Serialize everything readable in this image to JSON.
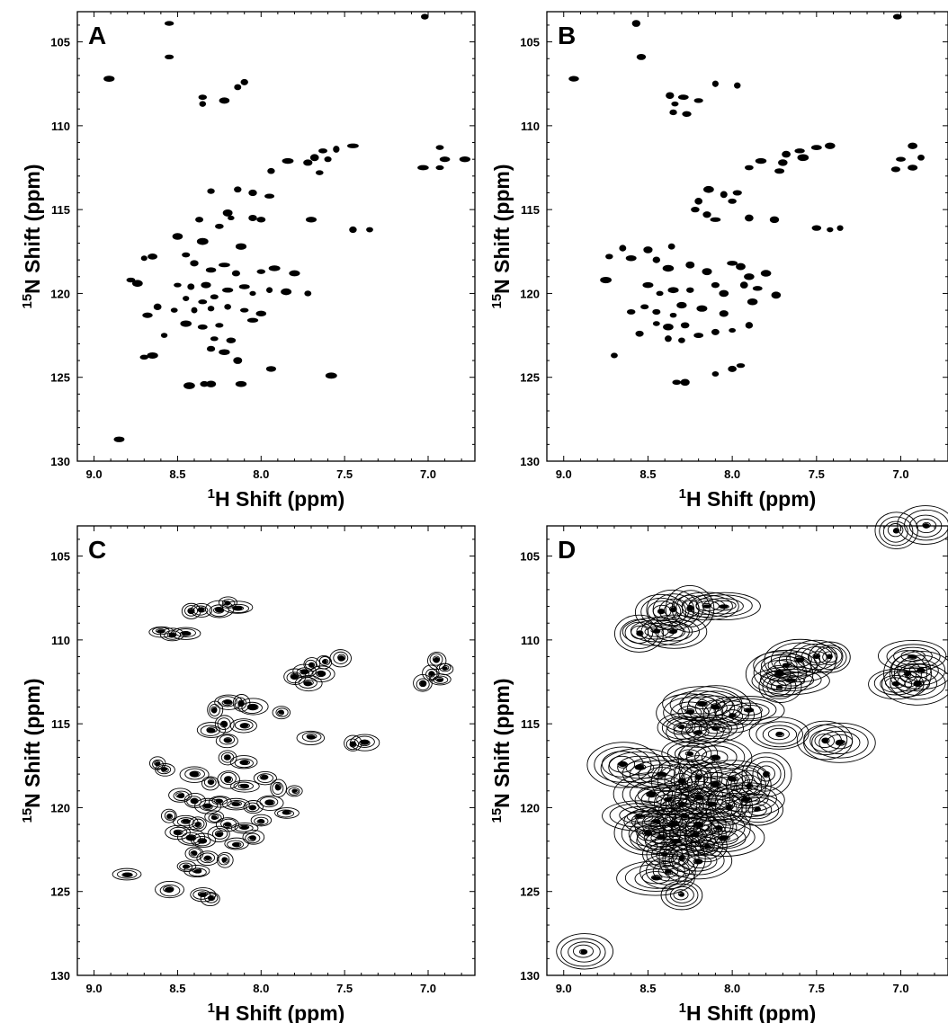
{
  "chart_data": [
    {
      "type": "scatter",
      "panel_label": "A",
      "xlabel": {
        "sup": "1",
        "text": "H Shift (ppm)"
      },
      "ylabel": {
        "sup": "15",
        "text": "N Shift (ppm)"
      },
      "xlim": [
        9.1,
        6.72
      ],
      "ylim": [
        130,
        103.2
      ],
      "x_ticks": [
        "9.0",
        "8.5",
        "8.0",
        "7.5",
        "7.0"
      ],
      "y_ticks": [
        "105",
        "110",
        "115",
        "120",
        "125",
        "130"
      ],
      "peaks": [
        [
          8.55,
          103.9
        ],
        [
          7.02,
          103.5
        ],
        [
          8.55,
          105.9
        ],
        [
          8.91,
          107.2
        ],
        [
          8.35,
          108.3
        ],
        [
          8.22,
          108.5
        ],
        [
          8.35,
          108.7
        ],
        [
          8.1,
          107.4
        ],
        [
          8.14,
          107.7
        ],
        [
          7.63,
          111.5
        ],
        [
          7.55,
          111.4
        ],
        [
          7.45,
          111.2
        ],
        [
          7.68,
          111.9
        ],
        [
          7.6,
          112.0
        ],
        [
          7.72,
          112.2
        ],
        [
          7.65,
          112.8
        ],
        [
          7.84,
          112.1
        ],
        [
          7.94,
          112.7
        ],
        [
          6.93,
          111.3
        ],
        [
          6.9,
          112.0
        ],
        [
          6.93,
          112.5
        ],
        [
          7.03,
          112.5
        ],
        [
          6.78,
          112.0
        ],
        [
          8.14,
          113.8
        ],
        [
          8.05,
          114.0
        ],
        [
          7.95,
          114.2
        ],
        [
          8.3,
          113.9
        ],
        [
          8.18,
          115.5
        ],
        [
          8.05,
          115.5
        ],
        [
          8.2,
          115.2
        ],
        [
          8.37,
          115.6
        ],
        [
          8.0,
          115.6
        ],
        [
          7.7,
          115.6
        ],
        [
          8.25,
          116.0
        ],
        [
          7.45,
          116.2
        ],
        [
          7.35,
          116.2
        ],
        [
          8.5,
          116.6
        ],
        [
          8.35,
          116.9
        ],
        [
          8.12,
          117.2
        ],
        [
          8.65,
          117.8
        ],
        [
          8.7,
          117.9
        ],
        [
          8.45,
          117.7
        ],
        [
          8.4,
          118.2
        ],
        [
          8.3,
          118.6
        ],
        [
          8.22,
          118.3
        ],
        [
          8.15,
          118.8
        ],
        [
          8.0,
          118.7
        ],
        [
          7.92,
          118.5
        ],
        [
          7.8,
          118.8
        ],
        [
          8.78,
          119.2
        ],
        [
          8.74,
          119.4
        ],
        [
          8.5,
          119.5
        ],
        [
          8.42,
          119.6
        ],
        [
          8.33,
          119.5
        ],
        [
          8.2,
          119.8
        ],
        [
          8.1,
          119.6
        ],
        [
          8.05,
          120.0
        ],
        [
          7.95,
          119.8
        ],
        [
          7.85,
          119.9
        ],
        [
          7.72,
          120.0
        ],
        [
          8.45,
          120.3
        ],
        [
          8.35,
          120.5
        ],
        [
          8.28,
          120.2
        ],
        [
          8.62,
          120.8
        ],
        [
          8.52,
          121.0
        ],
        [
          8.4,
          121.0
        ],
        [
          8.3,
          120.9
        ],
        [
          8.2,
          120.8
        ],
        [
          8.1,
          121.0
        ],
        [
          8.0,
          121.2
        ],
        [
          8.68,
          121.3
        ],
        [
          8.45,
          121.8
        ],
        [
          8.35,
          122.0
        ],
        [
          8.25,
          121.9
        ],
        [
          8.05,
          121.6
        ],
        [
          8.58,
          122.5
        ],
        [
          8.28,
          122.7
        ],
        [
          8.18,
          122.8
        ],
        [
          8.3,
          123.3
        ],
        [
          8.22,
          123.5
        ],
        [
          8.7,
          123.8
        ],
        [
          8.65,
          123.7
        ],
        [
          8.14,
          124.0
        ],
        [
          7.94,
          124.5
        ],
        [
          8.43,
          125.5
        ],
        [
          8.34,
          125.4
        ],
        [
          8.3,
          125.4
        ],
        [
          8.12,
          125.4
        ],
        [
          7.58,
          124.9
        ],
        [
          8.85,
          128.7
        ]
      ]
    },
    {
      "type": "scatter",
      "panel_label": "B",
      "xlabel": {
        "sup": "1",
        "text": "H Shift (ppm)"
      },
      "ylabel": {
        "sup": "15",
        "text": "N Shift (ppm)"
      },
      "xlim": [
        9.1,
        6.72
      ],
      "ylim": [
        130,
        103.2
      ],
      "x_ticks": [
        "9.0",
        "8.5",
        "8.0",
        "7.5",
        "7.0"
      ],
      "y_ticks": [
        "105",
        "110",
        "115",
        "120",
        "125",
        "130"
      ],
      "peaks": [
        [
          8.57,
          103.9
        ],
        [
          7.02,
          103.5
        ],
        [
          8.54,
          105.9
        ],
        [
          8.94,
          107.2
        ],
        [
          8.37,
          108.2
        ],
        [
          8.29,
          108.3
        ],
        [
          8.34,
          108.7
        ],
        [
          8.2,
          108.5
        ],
        [
          8.1,
          107.5
        ],
        [
          7.97,
          107.6
        ],
        [
          8.35,
          109.2
        ],
        [
          8.27,
          109.3
        ],
        [
          7.6,
          111.5
        ],
        [
          7.5,
          111.3
        ],
        [
          7.42,
          111.2
        ],
        [
          7.68,
          111.7
        ],
        [
          7.7,
          112.2
        ],
        [
          7.58,
          111.9
        ],
        [
          7.72,
          112.7
        ],
        [
          7.83,
          112.1
        ],
        [
          7.9,
          112.5
        ],
        [
          6.93,
          111.2
        ],
        [
          6.88,
          111.9
        ],
        [
          7.0,
          112.0
        ],
        [
          6.93,
          112.5
        ],
        [
          7.03,
          112.6
        ],
        [
          8.14,
          113.8
        ],
        [
          8.05,
          114.1
        ],
        [
          7.97,
          114.0
        ],
        [
          8.2,
          114.5
        ],
        [
          8.0,
          114.5
        ],
        [
          8.15,
          115.3
        ],
        [
          8.22,
          115.0
        ],
        [
          8.1,
          115.6
        ],
        [
          7.9,
          115.5
        ],
        [
          7.75,
          115.6
        ],
        [
          7.5,
          116.1
        ],
        [
          7.42,
          116.2
        ],
        [
          7.36,
          116.1
        ],
        [
          8.65,
          117.3
        ],
        [
          8.5,
          117.4
        ],
        [
          8.36,
          117.2
        ],
        [
          8.6,
          117.9
        ],
        [
          8.73,
          117.8
        ],
        [
          8.45,
          118.0
        ],
        [
          8.38,
          118.5
        ],
        [
          8.25,
          118.3
        ],
        [
          8.15,
          118.7
        ],
        [
          8.0,
          118.2
        ],
        [
          7.95,
          118.4
        ],
        [
          7.9,
          119.0
        ],
        [
          7.8,
          118.8
        ],
        [
          8.75,
          119.2
        ],
        [
          8.5,
          119.5
        ],
        [
          8.43,
          120.0
        ],
        [
          8.35,
          119.8
        ],
        [
          8.25,
          119.8
        ],
        [
          8.1,
          119.5
        ],
        [
          8.05,
          120.0
        ],
        [
          7.93,
          119.5
        ],
        [
          7.85,
          119.7
        ],
        [
          7.74,
          120.1
        ],
        [
          8.52,
          120.8
        ],
        [
          8.45,
          121.1
        ],
        [
          8.35,
          121.3
        ],
        [
          8.3,
          120.7
        ],
        [
          8.18,
          120.9
        ],
        [
          8.05,
          121.2
        ],
        [
          7.88,
          120.5
        ],
        [
          8.6,
          121.1
        ],
        [
          8.45,
          121.8
        ],
        [
          8.38,
          122.0
        ],
        [
          8.28,
          121.9
        ],
        [
          8.1,
          122.3
        ],
        [
          8.0,
          122.2
        ],
        [
          7.9,
          121.9
        ],
        [
          8.55,
          122.4
        ],
        [
          8.38,
          122.7
        ],
        [
          8.3,
          122.8
        ],
        [
          8.2,
          122.5
        ],
        [
          8.7,
          123.7
        ],
        [
          8.0,
          124.5
        ],
        [
          7.95,
          124.3
        ],
        [
          8.33,
          125.3
        ],
        [
          8.28,
          125.3
        ],
        [
          8.1,
          124.8
        ]
      ]
    },
    {
      "type": "scatter",
      "panel_label": "C",
      "xlabel": {
        "sup": "1",
        "text": "H Shift (ppm)"
      },
      "ylabel": {
        "sup": "15",
        "text": "N Shift (ppm)"
      },
      "xlim": [
        9.1,
        6.72
      ],
      "ylim": [
        130,
        103.2
      ],
      "x_ticks": [
        "9.0",
        "8.5",
        "8.0",
        "7.5",
        "7.0"
      ],
      "y_ticks": [
        "105",
        "110",
        "115",
        "120",
        "125",
        "130"
      ],
      "peaks": [
        [
          8.42,
          108.3
        ],
        [
          8.36,
          108.2
        ],
        [
          8.25,
          108.2
        ],
        [
          8.14,
          108.1
        ],
        [
          8.2,
          107.8
        ],
        [
          8.53,
          109.7
        ],
        [
          8.45,
          109.6
        ],
        [
          8.6,
          109.5
        ],
        [
          7.62,
          111.3
        ],
        [
          7.52,
          111.1
        ],
        [
          7.7,
          111.5
        ],
        [
          7.74,
          111.9
        ],
        [
          7.64,
          112.0
        ],
        [
          7.72,
          112.6
        ],
        [
          7.8,
          112.2
        ],
        [
          6.95,
          111.2
        ],
        [
          6.9,
          111.7
        ],
        [
          6.98,
          112.0
        ],
        [
          7.03,
          112.6
        ],
        [
          6.93,
          112.4
        ],
        [
          8.2,
          113.7
        ],
        [
          8.12,
          113.8
        ],
        [
          8.28,
          114.2
        ],
        [
          8.05,
          114.0
        ],
        [
          7.88,
          114.3
        ],
        [
          8.22,
          115.0
        ],
        [
          8.3,
          115.4
        ],
        [
          8.1,
          115.1
        ],
        [
          8.2,
          116.0
        ],
        [
          7.7,
          115.8
        ],
        [
          7.45,
          116.2
        ],
        [
          7.38,
          116.1
        ],
        [
          8.2,
          117.0
        ],
        [
          8.1,
          117.3
        ],
        [
          8.62,
          117.4
        ],
        [
          8.58,
          117.7
        ],
        [
          8.4,
          118.0
        ],
        [
          8.3,
          118.5
        ],
        [
          8.2,
          118.3
        ],
        [
          8.1,
          118.7
        ],
        [
          7.98,
          118.2
        ],
        [
          7.9,
          118.8
        ],
        [
          7.8,
          119.0
        ],
        [
          8.48,
          119.3
        ],
        [
          8.4,
          119.6
        ],
        [
          8.32,
          119.9
        ],
        [
          8.25,
          119.6
        ],
        [
          8.15,
          119.8
        ],
        [
          8.05,
          120.0
        ],
        [
          7.95,
          119.7
        ],
        [
          7.85,
          120.3
        ],
        [
          8.55,
          120.5
        ],
        [
          8.45,
          120.8
        ],
        [
          8.38,
          121.0
        ],
        [
          8.28,
          120.6
        ],
        [
          8.2,
          121.0
        ],
        [
          8.1,
          121.2
        ],
        [
          8.0,
          120.8
        ],
        [
          8.5,
          121.5
        ],
        [
          8.42,
          121.8
        ],
        [
          8.35,
          122.0
        ],
        [
          8.25,
          121.6
        ],
        [
          8.15,
          122.2
        ],
        [
          8.05,
          121.8
        ],
        [
          8.4,
          122.7
        ],
        [
          8.32,
          123.0
        ],
        [
          8.22,
          123.1
        ],
        [
          8.45,
          123.5
        ],
        [
          8.38,
          123.8
        ],
        [
          8.8,
          124.0
        ],
        [
          8.55,
          124.9
        ],
        [
          8.35,
          125.2
        ],
        [
          8.3,
          125.4
        ]
      ]
    },
    {
      "type": "scatter",
      "panel_label": "D",
      "xlabel": {
        "sup": "1",
        "text": "H Shift (ppm)"
      },
      "ylabel": {
        "sup": "15",
        "text": "N Shift (ppm)"
      },
      "xlim": [
        9.1,
        6.72
      ],
      "ylim": [
        130,
        103.2
      ],
      "x_ticks": [
        "9.0",
        "8.5",
        "8.0",
        "7.5",
        "7.0"
      ],
      "y_ticks": [
        "105",
        "110",
        "115",
        "120",
        "125",
        "130"
      ],
      "peaks": [
        [
          7.03,
          103.5
        ],
        [
          6.85,
          103.2
        ],
        [
          8.42,
          108.3
        ],
        [
          8.35,
          108.2
        ],
        [
          8.25,
          108.1
        ],
        [
          8.15,
          108.0
        ],
        [
          8.55,
          109.6
        ],
        [
          8.45,
          109.5
        ],
        [
          8.35,
          109.5
        ],
        [
          8.05,
          108.0
        ],
        [
          7.6,
          111.2
        ],
        [
          7.5,
          111.0
        ],
        [
          7.42,
          111.0
        ],
        [
          7.68,
          111.5
        ],
        [
          7.72,
          112.0
        ],
        [
          7.65,
          112.4
        ],
        [
          7.72,
          112.8
        ],
        [
          6.93,
          111.0
        ],
        [
          6.88,
          111.8
        ],
        [
          6.96,
          112.0
        ],
        [
          7.03,
          112.6
        ],
        [
          6.9,
          112.6
        ],
        [
          8.18,
          113.8
        ],
        [
          8.1,
          114.0
        ],
        [
          8.25,
          114.3
        ],
        [
          8.0,
          114.5
        ],
        [
          7.9,
          114.2
        ],
        [
          8.3,
          115.2
        ],
        [
          8.2,
          115.5
        ],
        [
          8.1,
          115.3
        ],
        [
          7.72,
          115.6
        ],
        [
          7.45,
          116.0
        ],
        [
          7.36,
          116.1
        ],
        [
          8.25,
          116.8
        ],
        [
          8.1,
          117.0
        ],
        [
          8.65,
          117.4
        ],
        [
          8.55,
          117.6
        ],
        [
          8.42,
          118.0
        ],
        [
          8.3,
          118.4
        ],
        [
          8.2,
          118.2
        ],
        [
          8.1,
          118.6
        ],
        [
          8.0,
          118.3
        ],
        [
          7.9,
          118.7
        ],
        [
          7.8,
          118.0
        ],
        [
          8.48,
          119.2
        ],
        [
          8.38,
          119.5
        ],
        [
          8.3,
          119.8
        ],
        [
          8.2,
          119.4
        ],
        [
          8.12,
          119.8
        ],
        [
          8.02,
          120.0
        ],
        [
          7.92,
          119.5
        ],
        [
          8.55,
          120.5
        ],
        [
          8.45,
          120.8
        ],
        [
          8.35,
          121.0
        ],
        [
          8.28,
          120.5
        ],
        [
          8.2,
          121.0
        ],
        [
          8.08,
          121.2
        ],
        [
          8.5,
          121.5
        ],
        [
          8.42,
          121.8
        ],
        [
          8.33,
          122.0
        ],
        [
          8.22,
          121.6
        ],
        [
          8.15,
          122.3
        ],
        [
          8.05,
          121.8
        ],
        [
          8.4,
          122.8
        ],
        [
          8.3,
          123.0
        ],
        [
          8.2,
          123.2
        ],
        [
          8.38,
          123.8
        ],
        [
          8.45,
          124.2
        ],
        [
          8.3,
          125.2
        ],
        [
          7.85,
          120.1
        ],
        [
          8.88,
          128.6
        ]
      ]
    }
  ]
}
